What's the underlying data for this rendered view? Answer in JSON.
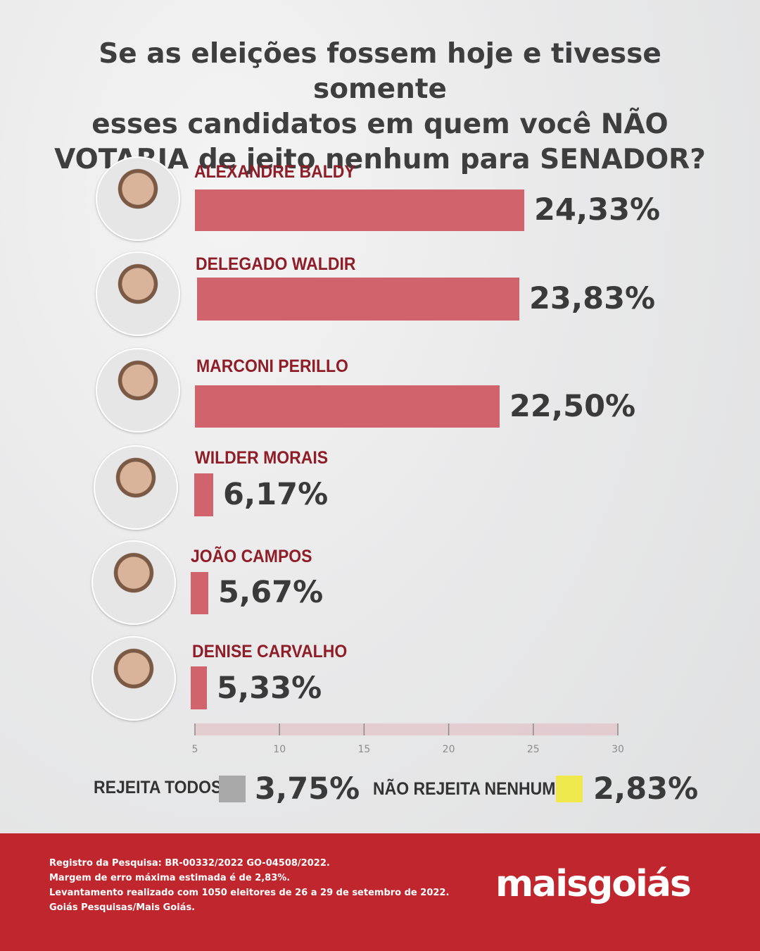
{
  "title_lines": [
    "Se as eleições fossem hoje e tivesse somente",
    "esses candidatos em quem você NÃO",
    "VOTARIA de jeito nenhum para SENADOR?"
  ],
  "chart_data": {
    "type": "bar",
    "orientation": "horizontal",
    "categories": [
      "ALEXANDRE BALDY",
      "DELEGADO WALDIR",
      "MARCONI PERILLO",
      "WILDER MORAIS",
      "JOÃO CAMPOS",
      "DENISE CARVALHO"
    ],
    "values": [
      24.33,
      23.83,
      22.5,
      6.17,
      5.67,
      5.33
    ],
    "value_labels": [
      "24,33%",
      "23,83%",
      "22,50%",
      "6,17%",
      "5,67%",
      "5,33%"
    ],
    "xlim": [
      5,
      30
    ],
    "xticks": [
      "5",
      "10",
      "15",
      "20",
      "25",
      "30"
    ],
    "bar_color": "#d1636d",
    "label_color": "#8f1d27",
    "grid": false
  },
  "extras": [
    {
      "label": "REJEITA TODOS",
      "value": "3,75%",
      "color": "#a9a9a9"
    },
    {
      "label": "NÃO REJEITA NENHUM",
      "value": "2,83%",
      "color": "#efe94e"
    }
  ],
  "footer": {
    "notes": [
      "Registro da Pesquisa: BR-00332/2022 GO-04508/2022.",
      "Margem de erro máxima estimada é de 2,83%.",
      "Levantamento realizado com 1050 eleitores de 26 a 29 de setembro de 2022.",
      "Goiás Pesquisas/Mais Goiás."
    ],
    "logo_part1": "mais",
    "logo_part2": "goiás",
    "background": "#c0262d"
  }
}
